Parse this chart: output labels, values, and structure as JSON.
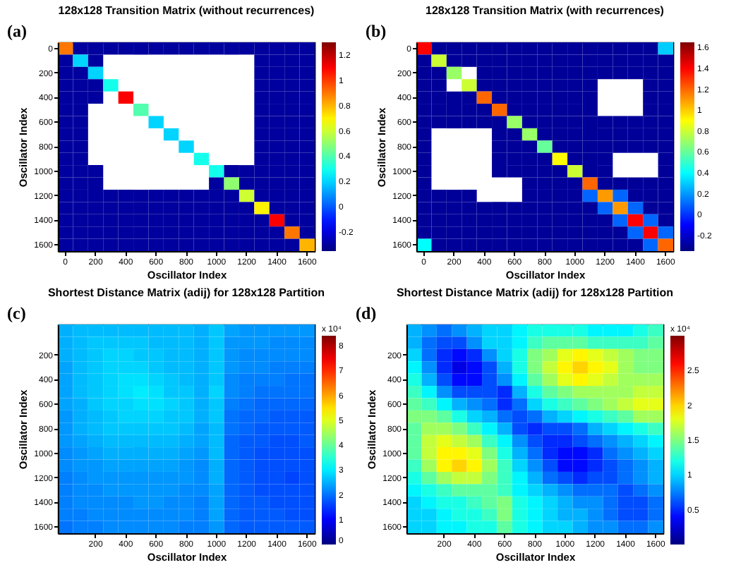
{
  "chart_data": [
    {
      "type": "heatmap",
      "title": "128x128 Transition Matrix (without recurrences)",
      "xlabel": "Oscillator Index",
      "ylabel": "Oscillator Index",
      "annotations": [
        "(a)"
      ],
      "categories": [
        "0",
        null,
        "200",
        null,
        "400",
        null,
        "600",
        null,
        "800",
        null,
        "1000",
        null,
        "1200",
        null,
        "1400",
        null,
        "1600"
      ],
      "y_categories": [
        "0",
        null,
        "200",
        null,
        "400",
        null,
        "600",
        null,
        "800",
        null,
        "1000",
        null,
        "1200",
        null,
        "1400",
        null,
        "1600"
      ],
      "clim": [
        -0.35,
        1.3
      ],
      "cticks": [
        -0.2,
        0,
        0.2,
        0.4,
        0.6,
        0.8,
        1,
        1.2
      ],
      "cells": [
        [
          0.9,
          -0.3,
          -0.3,
          -0.3,
          -0.3,
          -0.3,
          -0.3,
          -0.3,
          -0.3,
          -0.3,
          -0.3,
          -0.3,
          -0.3,
          -0.3,
          -0.3,
          -0.3,
          -0.3
        ],
        [
          -0.3,
          0.2,
          -0.3,
          null,
          null,
          null,
          null,
          null,
          null,
          null,
          null,
          null,
          null,
          -0.3,
          -0.3,
          -0.3,
          -0.3
        ],
        [
          -0.3,
          -0.3,
          0.2,
          null,
          null,
          null,
          null,
          null,
          null,
          null,
          null,
          null,
          null,
          -0.3,
          -0.3,
          -0.3,
          -0.3
        ],
        [
          -0.3,
          -0.3,
          -0.3,
          0.3,
          null,
          null,
          null,
          null,
          null,
          null,
          null,
          null,
          null,
          -0.3,
          -0.3,
          -0.3,
          -0.3
        ],
        [
          -0.3,
          -0.3,
          -0.3,
          null,
          1.1,
          null,
          null,
          null,
          null,
          null,
          null,
          null,
          null,
          -0.3,
          -0.3,
          -0.3,
          -0.3
        ],
        [
          -0.3,
          -0.3,
          null,
          null,
          null,
          0.4,
          null,
          null,
          null,
          null,
          null,
          null,
          null,
          -0.3,
          -0.3,
          -0.3,
          -0.3
        ],
        [
          -0.3,
          -0.3,
          null,
          null,
          null,
          null,
          0.2,
          null,
          null,
          null,
          null,
          null,
          null,
          -0.3,
          -0.3,
          -0.3,
          -0.3
        ],
        [
          -0.3,
          -0.3,
          null,
          null,
          null,
          null,
          null,
          0.2,
          null,
          null,
          null,
          null,
          null,
          -0.3,
          -0.3,
          -0.3,
          -0.3
        ],
        [
          -0.3,
          -0.3,
          null,
          null,
          null,
          null,
          null,
          null,
          0.2,
          null,
          null,
          null,
          null,
          -0.3,
          -0.3,
          -0.3,
          -0.3
        ],
        [
          -0.3,
          -0.3,
          null,
          null,
          null,
          null,
          null,
          null,
          null,
          0.3,
          null,
          null,
          null,
          -0.3,
          -0.3,
          -0.3,
          -0.3
        ],
        [
          -0.3,
          -0.3,
          -0.3,
          null,
          null,
          null,
          null,
          null,
          null,
          null,
          0.3,
          -0.3,
          -0.3,
          -0.3,
          -0.3,
          -0.3,
          -0.3
        ],
        [
          -0.3,
          -0.3,
          -0.3,
          null,
          null,
          null,
          null,
          null,
          null,
          null,
          -0.3,
          0.5,
          -0.3,
          -0.3,
          -0.3,
          -0.3,
          -0.3
        ],
        [
          -0.3,
          -0.3,
          -0.3,
          -0.3,
          -0.3,
          -0.3,
          -0.3,
          -0.3,
          -0.3,
          -0.3,
          -0.3,
          -0.3,
          0.6,
          -0.3,
          -0.3,
          -0.3,
          -0.3
        ],
        [
          -0.3,
          -0.3,
          -0.3,
          -0.3,
          -0.3,
          -0.3,
          -0.3,
          -0.3,
          -0.3,
          -0.3,
          -0.3,
          -0.3,
          -0.3,
          0.7,
          -0.3,
          -0.3,
          -0.3
        ],
        [
          -0.3,
          -0.3,
          -0.3,
          -0.3,
          -0.3,
          -0.3,
          -0.3,
          -0.3,
          -0.3,
          -0.3,
          -0.3,
          -0.3,
          -0.3,
          -0.3,
          1.1,
          -0.3,
          -0.3
        ],
        [
          -0.3,
          -0.3,
          -0.3,
          -0.3,
          -0.3,
          -0.3,
          -0.3,
          -0.3,
          -0.3,
          -0.3,
          -0.3,
          -0.3,
          -0.3,
          -0.3,
          -0.3,
          0.9,
          -0.3
        ],
        [
          -0.3,
          -0.3,
          -0.3,
          -0.3,
          -0.3,
          -0.3,
          -0.3,
          -0.3,
          -0.3,
          -0.3,
          -0.3,
          -0.3,
          -0.3,
          -0.3,
          -0.3,
          -0.3,
          0.8
        ]
      ]
    },
    {
      "type": "heatmap",
      "title": "128x128 Transition Matrix (with recurrences)",
      "xlabel": "Oscillator Index",
      "ylabel": "Oscillator Index",
      "annotations": [
        "(b)"
      ],
      "categories": [
        "0",
        null,
        "200",
        null,
        "400",
        null,
        "600",
        null,
        "800",
        null,
        "1000",
        null,
        "1200",
        null,
        "1400",
        null,
        "1600"
      ],
      "y_categories": [
        "0",
        null,
        "200",
        null,
        "400",
        null,
        "600",
        null,
        "800",
        null,
        "1000",
        null,
        "1200",
        null,
        "1400",
        null,
        "1600"
      ],
      "clim": [
        -0.35,
        1.65
      ],
      "cticks": [
        -0.2,
        0,
        0.2,
        0.4,
        0.6,
        0.8,
        1,
        1.2,
        1.4,
        1.6
      ],
      "cells": [
        [
          1.4,
          -0.3,
          -0.3,
          -0.3,
          -0.3,
          -0.3,
          -0.3,
          -0.3,
          -0.3,
          -0.3,
          -0.3,
          -0.3,
          -0.3,
          -0.3,
          -0.3,
          -0.3,
          0.3
        ],
        [
          -0.3,
          0.8,
          -0.3,
          -0.3,
          -0.3,
          -0.3,
          -0.3,
          -0.3,
          -0.3,
          -0.3,
          -0.3,
          -0.3,
          -0.3,
          -0.3,
          -0.3,
          -0.3,
          -0.3
        ],
        [
          -0.3,
          -0.3,
          0.7,
          null,
          -0.3,
          -0.3,
          -0.3,
          -0.3,
          -0.3,
          -0.3,
          -0.3,
          -0.3,
          -0.3,
          -0.3,
          -0.3,
          -0.3,
          -0.3
        ],
        [
          -0.3,
          -0.3,
          null,
          0.8,
          -0.3,
          -0.3,
          -0.3,
          -0.3,
          -0.3,
          -0.3,
          -0.3,
          -0.3,
          null,
          null,
          null,
          -0.3,
          -0.3
        ],
        [
          -0.3,
          -0.3,
          -0.3,
          -0.3,
          1.2,
          -0.3,
          -0.3,
          -0.3,
          -0.3,
          -0.3,
          -0.3,
          -0.3,
          null,
          null,
          null,
          -0.3,
          -0.3
        ],
        [
          -0.3,
          -0.3,
          -0.3,
          -0.3,
          -0.3,
          1.2,
          -0.3,
          -0.3,
          -0.3,
          -0.3,
          -0.3,
          -0.3,
          null,
          null,
          null,
          -0.3,
          -0.3
        ],
        [
          -0.3,
          -0.3,
          -0.3,
          -0.3,
          -0.3,
          -0.3,
          0.7,
          -0.3,
          -0.3,
          -0.3,
          -0.3,
          -0.3,
          -0.3,
          -0.3,
          -0.3,
          -0.3,
          -0.3
        ],
        [
          -0.3,
          null,
          null,
          null,
          null,
          -0.3,
          -0.3,
          0.7,
          -0.3,
          -0.3,
          -0.3,
          -0.3,
          -0.3,
          -0.3,
          -0.3,
          -0.3,
          -0.3
        ],
        [
          -0.3,
          null,
          null,
          null,
          null,
          -0.3,
          -0.3,
          -0.3,
          0.6,
          -0.3,
          -0.3,
          -0.3,
          -0.3,
          -0.3,
          -0.3,
          -0.3,
          -0.3
        ],
        [
          -0.3,
          null,
          null,
          null,
          null,
          -0.3,
          -0.3,
          -0.3,
          -0.3,
          0.9,
          -0.3,
          -0.3,
          -0.3,
          null,
          null,
          null,
          -0.3
        ],
        [
          -0.3,
          null,
          null,
          null,
          null,
          -0.3,
          -0.3,
          -0.3,
          -0.3,
          -0.3,
          0.8,
          -0.3,
          -0.3,
          null,
          null,
          null,
          -0.3
        ],
        [
          -0.3,
          null,
          null,
          null,
          null,
          null,
          null,
          -0.3,
          -0.3,
          -0.3,
          -0.3,
          1.2,
          -0.3,
          -0.3,
          -0.3,
          -0.3,
          -0.3
        ],
        [
          -0.3,
          -0.3,
          -0.3,
          -0.3,
          null,
          null,
          null,
          -0.3,
          -0.3,
          -0.3,
          -0.3,
          0.1,
          1.1,
          0.1,
          -0.3,
          -0.3,
          -0.3
        ],
        [
          -0.3,
          -0.3,
          -0.3,
          -0.3,
          -0.3,
          -0.3,
          -0.3,
          -0.3,
          -0.3,
          -0.3,
          -0.3,
          -0.3,
          0.1,
          1.1,
          0.1,
          -0.3,
          -0.3
        ],
        [
          -0.3,
          -0.3,
          -0.3,
          -0.3,
          -0.3,
          -0.3,
          -0.3,
          -0.3,
          -0.3,
          -0.3,
          -0.3,
          -0.3,
          -0.3,
          0.1,
          1.4,
          0.1,
          -0.3
        ],
        [
          -0.3,
          -0.3,
          -0.3,
          -0.3,
          -0.3,
          -0.3,
          -0.3,
          -0.3,
          -0.3,
          -0.3,
          -0.3,
          -0.3,
          -0.3,
          -0.3,
          0.1,
          1.4,
          0.1
        ],
        [
          0.4,
          -0.3,
          -0.3,
          -0.3,
          -0.3,
          -0.3,
          -0.3,
          -0.3,
          -0.3,
          -0.3,
          -0.3,
          -0.3,
          -0.3,
          -0.3,
          -0.3,
          0.1,
          1.2
        ]
      ]
    },
    {
      "type": "heatmap",
      "title": "Shortest Distance Matrix (adij) for 128x128 Partition",
      "xlabel": "Oscillator Index",
      "ylabel": "Oscillator Index",
      "annotations": [
        "(c)"
      ],
      "clabel": "x 10⁴",
      "categories": [
        null,
        null,
        "200",
        null,
        "400",
        null,
        "600",
        null,
        "800",
        null,
        "1000",
        null,
        "1200",
        null,
        "1400",
        null,
        "1600"
      ],
      "y_categories": [
        null,
        null,
        "200",
        null,
        "400",
        null,
        "600",
        null,
        "800",
        null,
        "1000",
        null,
        "1200",
        null,
        "1400",
        null,
        "1600"
      ],
      "clim": [
        0,
        8.4
      ],
      "cticks": [
        0,
        1,
        2,
        3,
        4,
        5,
        6,
        7,
        8
      ],
      "cells": [
        [
          2.5,
          2.6,
          2.6,
          2.6,
          2.6,
          2.6,
          2.6,
          2.6,
          2.6,
          2.5,
          2.7,
          2.4,
          2.3,
          2.3,
          2.3,
          2.3,
          2.3
        ],
        [
          2.5,
          2.6,
          2.7,
          2.7,
          2.7,
          2.7,
          2.6,
          2.6,
          2.6,
          2.5,
          2.7,
          2.3,
          2.3,
          2.3,
          2.2,
          2.2,
          2.2
        ],
        [
          2.5,
          2.6,
          2.7,
          2.8,
          2.8,
          2.7,
          2.7,
          2.6,
          2.6,
          2.5,
          2.7,
          2.3,
          2.2,
          2.2,
          2.2,
          2.2,
          2.2
        ],
        [
          2.4,
          2.6,
          2.7,
          2.8,
          2.8,
          2.8,
          2.7,
          2.6,
          2.6,
          2.5,
          2.7,
          2.3,
          2.2,
          2.2,
          2.1,
          2.1,
          2.1
        ],
        [
          2.4,
          2.6,
          2.7,
          2.8,
          2.9,
          2.9,
          2.8,
          2.7,
          2.6,
          2.5,
          2.7,
          2.2,
          2.1,
          2.1,
          2.1,
          2.0,
          2.0
        ],
        [
          2.4,
          2.6,
          2.7,
          2.8,
          2.9,
          3.0,
          2.9,
          2.7,
          2.7,
          2.5,
          2.8,
          2.2,
          2.1,
          2.0,
          2.0,
          2.0,
          2.0
        ],
        [
          2.4,
          2.5,
          2.7,
          2.8,
          2.8,
          2.9,
          2.9,
          2.8,
          2.7,
          2.5,
          2.7,
          2.1,
          2.0,
          1.9,
          1.9,
          1.9,
          1.9
        ],
        [
          2.3,
          2.5,
          2.6,
          2.7,
          2.8,
          2.8,
          2.8,
          2.7,
          2.7,
          2.5,
          2.7,
          2.0,
          1.9,
          1.9,
          1.8,
          1.8,
          1.8
        ],
        [
          2.3,
          2.5,
          2.6,
          2.7,
          2.7,
          2.7,
          2.7,
          2.7,
          2.6,
          2.4,
          2.6,
          2.0,
          1.9,
          1.8,
          1.8,
          1.8,
          1.8
        ],
        [
          2.3,
          2.4,
          2.5,
          2.6,
          2.6,
          2.6,
          2.6,
          2.6,
          2.5,
          2.4,
          2.6,
          1.9,
          1.8,
          1.8,
          1.7,
          1.7,
          1.8
        ],
        [
          2.2,
          2.3,
          2.4,
          2.5,
          2.5,
          2.5,
          2.5,
          2.5,
          2.4,
          2.3,
          2.6,
          1.9,
          1.8,
          1.7,
          1.7,
          1.7,
          1.7
        ],
        [
          2.2,
          2.3,
          2.3,
          2.4,
          2.4,
          2.4,
          2.4,
          2.4,
          2.3,
          2.2,
          2.5,
          1.9,
          1.8,
          1.7,
          1.7,
          1.7,
          1.7
        ],
        [
          2.1,
          2.2,
          2.3,
          2.3,
          2.3,
          2.3,
          2.3,
          2.3,
          2.3,
          2.2,
          2.5,
          1.9,
          1.8,
          1.7,
          1.7,
          1.6,
          1.7
        ],
        [
          2.1,
          2.2,
          2.2,
          2.3,
          2.3,
          2.3,
          2.3,
          2.3,
          2.2,
          2.2,
          2.4,
          1.9,
          1.8,
          1.7,
          1.7,
          1.7,
          1.7
        ],
        [
          2.1,
          2.2,
          2.2,
          2.2,
          2.2,
          2.3,
          2.3,
          2.2,
          2.2,
          2.1,
          2.4,
          1.9,
          1.8,
          1.8,
          1.7,
          1.7,
          1.7
        ],
        [
          2.1,
          2.1,
          2.2,
          2.2,
          2.2,
          2.2,
          2.2,
          2.2,
          2.2,
          2.1,
          2.4,
          1.9,
          1.8,
          1.8,
          1.8,
          1.7,
          1.7
        ],
        [
          2.0,
          2.1,
          2.1,
          2.2,
          2.2,
          2.2,
          2.2,
          2.2,
          2.1,
          2.1,
          2.3,
          1.9,
          1.8,
          1.8,
          1.8,
          1.8,
          1.8
        ]
      ]
    },
    {
      "type": "heatmap",
      "title": "Shortest Distance Matrix (adij) for 128x128 Partition",
      "xlabel": "Oscillator Index",
      "ylabel": "Oscillator Index",
      "annotations": [
        "(d)"
      ],
      "clabel": "x 10⁴",
      "categories": [
        null,
        null,
        "200",
        null,
        "400",
        null,
        "600",
        null,
        "800",
        null,
        "1000",
        null,
        "1200",
        null,
        "1400",
        null,
        "1600"
      ],
      "y_categories": [
        null,
        null,
        "200",
        null,
        "400",
        null,
        "600",
        null,
        "800",
        null,
        "1000",
        null,
        "1200",
        null,
        "1400",
        null,
        "1600"
      ],
      "clim": [
        0,
        3.0
      ],
      "cticks": [
        0.5,
        1,
        1.5,
        2,
        2.5
      ],
      "cells": [
        [
          0.9,
          0.8,
          0.7,
          0.8,
          0.9,
          1.0,
          1.0,
          1.1,
          1.2,
          1.2,
          1.2,
          1.2,
          1.1,
          1.1,
          1.1,
          1.2,
          1.3
        ],
        [
          0.9,
          0.7,
          0.6,
          0.6,
          0.8,
          1.0,
          1.0,
          1.1,
          1.3,
          1.4,
          1.4,
          1.4,
          1.3,
          1.3,
          1.3,
          1.3,
          1.4
        ],
        [
          1.0,
          0.7,
          0.5,
          0.4,
          0.5,
          0.8,
          1.0,
          1.2,
          1.5,
          1.6,
          1.8,
          1.9,
          1.8,
          1.7,
          1.6,
          1.5,
          1.5
        ],
        [
          1.1,
          0.8,
          0.5,
          0.3,
          0.4,
          0.6,
          0.9,
          1.2,
          1.5,
          1.7,
          1.9,
          2.0,
          1.9,
          1.8,
          1.6,
          1.5,
          1.5
        ],
        [
          1.2,
          0.9,
          0.6,
          0.4,
          0.4,
          0.6,
          0.8,
          1.1,
          1.4,
          1.6,
          1.8,
          1.9,
          1.8,
          1.7,
          1.6,
          1.6,
          1.6
        ],
        [
          1.3,
          1.1,
          0.8,
          0.6,
          0.6,
          0.6,
          0.5,
          0.9,
          1.2,
          1.4,
          1.5,
          1.6,
          1.6,
          1.6,
          1.6,
          1.7,
          1.7
        ],
        [
          1.4,
          1.3,
          1.1,
          0.9,
          0.8,
          0.7,
          0.5,
          0.7,
          1.0,
          1.2,
          1.3,
          1.4,
          1.5,
          1.6,
          1.7,
          1.8,
          1.8
        ],
        [
          1.5,
          1.5,
          1.4,
          1.2,
          1.0,
          0.9,
          0.7,
          0.6,
          0.7,
          0.9,
          1.0,
          1.1,
          1.2,
          1.3,
          1.4,
          1.6,
          1.6
        ],
        [
          1.4,
          1.6,
          1.6,
          1.5,
          1.3,
          1.1,
          0.9,
          0.6,
          0.5,
          0.6,
          0.6,
          0.7,
          0.9,
          1.0,
          1.1,
          1.2,
          1.3
        ],
        [
          1.4,
          1.7,
          1.8,
          1.7,
          1.6,
          1.3,
          1.1,
          0.8,
          0.6,
          0.5,
          0.5,
          0.6,
          0.7,
          0.8,
          0.9,
          1.0,
          1.1
        ],
        [
          1.4,
          1.7,
          1.9,
          1.9,
          1.8,
          1.5,
          1.2,
          0.9,
          0.7,
          0.5,
          0.4,
          0.4,
          0.5,
          0.7,
          0.8,
          0.9,
          1.0
        ],
        [
          1.3,
          1.6,
          1.9,
          2.0,
          1.9,
          1.6,
          1.3,
          1.0,
          0.8,
          0.6,
          0.4,
          0.4,
          0.5,
          0.6,
          0.7,
          0.8,
          0.9
        ],
        [
          1.2,
          1.4,
          1.6,
          1.7,
          1.7,
          1.5,
          1.3,
          1.1,
          0.9,
          0.7,
          0.6,
          0.5,
          0.6,
          0.6,
          0.7,
          0.8,
          0.9
        ],
        [
          1.1,
          1.2,
          1.3,
          1.4,
          1.4,
          1.4,
          1.3,
          1.1,
          1.0,
          0.9,
          0.8,
          0.7,
          0.7,
          0.7,
          0.6,
          0.7,
          0.8
        ],
        [
          1.0,
          1.1,
          1.2,
          1.2,
          1.3,
          1.4,
          1.5,
          1.2,
          1.1,
          1.0,
          0.9,
          0.8,
          0.8,
          0.7,
          0.6,
          0.6,
          0.7
        ],
        [
          1.0,
          1.0,
          1.1,
          1.2,
          1.2,
          1.3,
          1.5,
          1.2,
          1.1,
          1.0,
          0.9,
          0.9,
          0.8,
          0.7,
          0.6,
          0.6,
          0.7
        ],
        [
          1.0,
          1.0,
          1.1,
          1.1,
          1.2,
          1.2,
          1.4,
          1.2,
          1.1,
          1.0,
          1.0,
          0.9,
          0.8,
          0.8,
          0.7,
          0.7,
          0.8
        ]
      ]
    }
  ]
}
